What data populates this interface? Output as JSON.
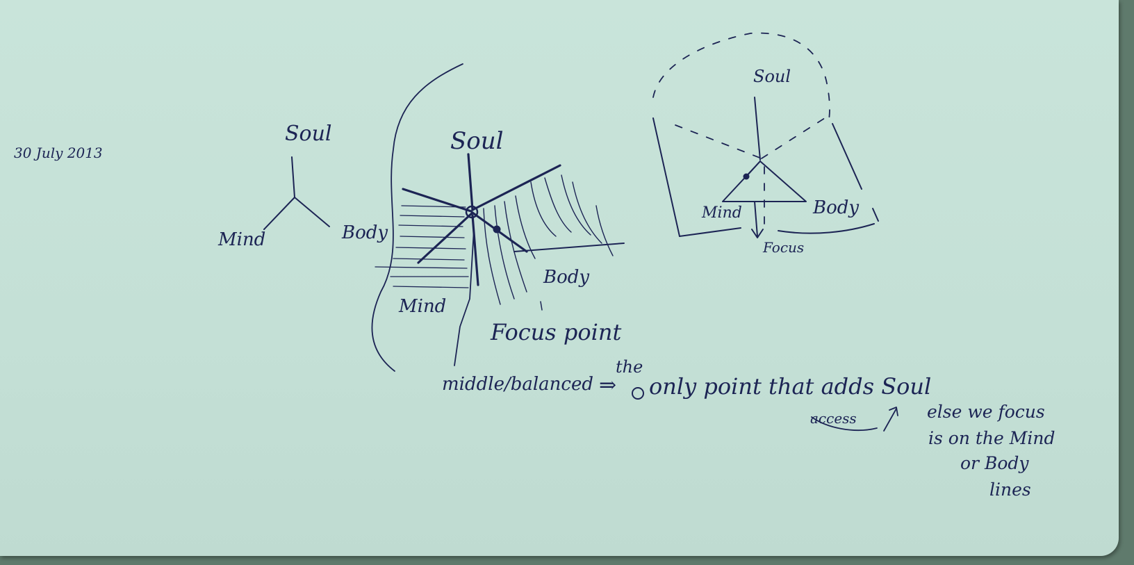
{
  "notes": {
    "date": "30 July 2013",
    "d1_soul": "Soul",
    "d1_mind": "Mind",
    "d1_body": "Body",
    "d2_soul": "Soul",
    "d2_body": "Body",
    "d2_mind": "Mind",
    "d2_focus": "Focus point",
    "d3_soul": "Soul",
    "d3_mind": "Mind",
    "d3_body": "Body",
    "d3_focus": "Focus",
    "line_middle": "middle/balanced",
    "line_arrow": "⇒",
    "line_the": "the",
    "line_only": "only point that adds Soul",
    "line_access": "access",
    "side_1": "else we focus",
    "side_2": "is on the Mind",
    "side_3": "or Body",
    "side_4": "lines"
  },
  "colors": {
    "ink": "#1c2454",
    "paper": "#c6e2d8"
  }
}
